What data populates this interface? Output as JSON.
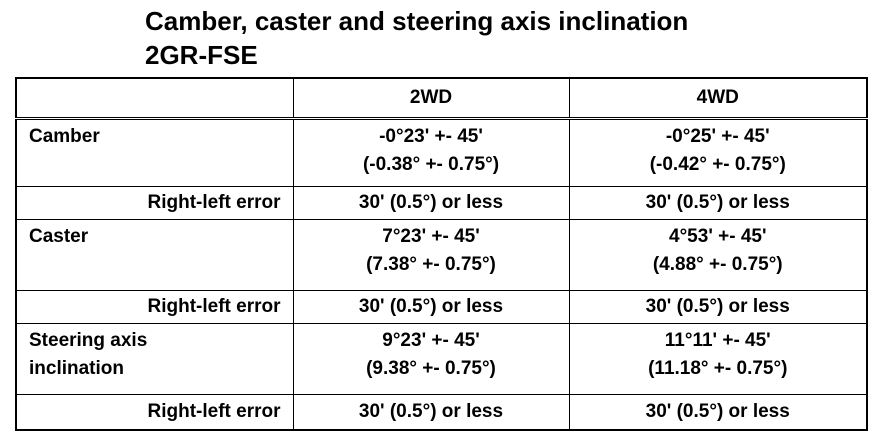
{
  "header": {
    "title_lines": [
      "Camber, caster and steering axis inclination",
      "2GR-FSE"
    ]
  },
  "table": {
    "columns": [
      "2WD",
      "4WD"
    ],
    "rows": [
      {
        "label": [
          "Camber"
        ],
        "cells": [
          [
            "-0°23' +- 45'",
            "(-0.38° +- 0.75°)"
          ],
          [
            "-0°25' +- 45'",
            "(-0.42° +- 0.75°)"
          ]
        ]
      },
      {
        "label": [
          "Right-left error"
        ],
        "cells": [
          [
            "30' (0.5°) or less"
          ],
          [
            "30' (0.5°) or less"
          ]
        ]
      },
      {
        "label": [
          "Caster"
        ],
        "cells": [
          [
            "7°23' +- 45'",
            "(7.38° +- 0.75°)"
          ],
          [
            "4°53' +- 45'",
            "(4.88° +- 0.75°)"
          ]
        ]
      },
      {
        "label": [
          "Right-left error"
        ],
        "cells": [
          [
            "30' (0.5°) or less"
          ],
          [
            "30' (0.5°) or less"
          ]
        ]
      },
      {
        "label": [
          "Steering axis",
          "inclination"
        ],
        "cells": [
          [
            "9°23' +- 45'",
            "(9.38° +- 0.75°)"
          ],
          [
            "11°11' +- 45'",
            "(11.18° +- 0.75°)"
          ]
        ]
      },
      {
        "label": [
          "Right-left error"
        ],
        "cells": [
          [
            "30' (0.5°) or less"
          ],
          [
            "30' (0.5°) or less"
          ]
        ]
      }
    ]
  }
}
